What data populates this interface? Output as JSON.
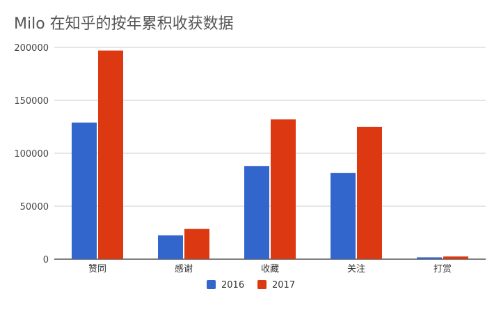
{
  "chart_data": {
    "type": "bar",
    "title": "Milo 在知乎的按年累积收获数据",
    "xlabel": "",
    "ylabel": "",
    "categories": [
      "赞同",
      "感谢",
      "收藏",
      "关注",
      "打赏"
    ],
    "series": [
      {
        "name": "2016",
        "values": [
          129000,
          22500,
          88000,
          81500,
          1700
        ],
        "color": "#3366CC"
      },
      {
        "name": "2017",
        "values": [
          197000,
          28500,
          132000,
          125000,
          2500
        ],
        "color": "#DC3912"
      }
    ],
    "ylim": [
      0,
      200000
    ],
    "yticks": [
      "0",
      "50000",
      "100000",
      "150000",
      "200000"
    ],
    "grid": true,
    "legend_position": "bottom"
  }
}
